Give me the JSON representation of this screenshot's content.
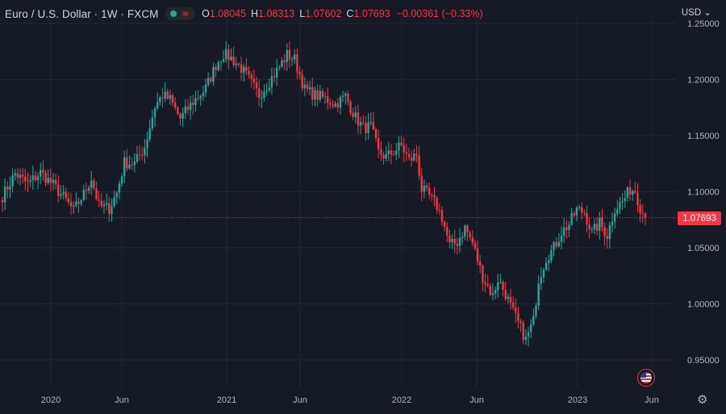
{
  "header": {
    "symbol": "Euro / U.S. Dollar · 1W · FXCM",
    "ohlc": [
      {
        "label": "O",
        "value": "1.08045"
      },
      {
        "label": "H",
        "value": "1.08313"
      },
      {
        "label": "L",
        "value": "1.07602"
      },
      {
        "label": "C",
        "value": "1.07693"
      }
    ],
    "change": "−0.00361 (−0.33%)",
    "currency": "USD"
  },
  "colors": {
    "background": "#161a25",
    "grid": "#242833",
    "up": "#26a69a",
    "down": "#f23645",
    "axis_text": "#b2b5be"
  },
  "icons": [
    "market-status-dot-icon",
    "wave-icon",
    "chevron-down-icon",
    "us-flag-icon",
    "gear-icon"
  ],
  "chart_data": {
    "type": "candlestick",
    "timeframe": "1W",
    "y_range": [
      0.935,
      1.26
    ],
    "y_ticks": [
      "1.25000",
      "1.20000",
      "1.15000",
      "1.10000",
      "1.05000",
      "1.00000",
      "0.95000"
    ],
    "x_ticks": [
      "2020",
      "Jun",
      "2021",
      "Jun",
      "2022",
      "Jun",
      "2023",
      "Jun"
    ],
    "last_price": "1.07693",
    "grid": true,
    "anchor_closes": [
      [
        0,
        1.096
      ],
      [
        5,
        1.116
      ],
      [
        10,
        1.107
      ],
      [
        15,
        1.117
      ],
      [
        20,
        1.106
      ],
      [
        25,
        1.092
      ],
      [
        28,
        1.083
      ],
      [
        32,
        1.098
      ],
      [
        35,
        1.112
      ],
      [
        38,
        1.087
      ],
      [
        42,
        1.085
      ],
      [
        45,
        1.099
      ],
      [
        48,
        1.126
      ],
      [
        52,
        1.125
      ],
      [
        56,
        1.14
      ],
      [
        60,
        1.176
      ],
      [
        63,
        1.186
      ],
      [
        66,
        1.182
      ],
      [
        70,
        1.165
      ],
      [
        75,
        1.18
      ],
      [
        80,
        1.192
      ],
      [
        84,
        1.213
      ],
      [
        87,
        1.223
      ],
      [
        90,
        1.219
      ],
      [
        94,
        1.21
      ],
      [
        97,
        1.2
      ],
      [
        101,
        1.186
      ],
      [
        104,
        1.195
      ],
      [
        108,
        1.208
      ],
      [
        112,
        1.222
      ],
      [
        115,
        1.218
      ],
      [
        119,
        1.191
      ],
      [
        123,
        1.186
      ],
      [
        127,
        1.183
      ],
      [
        131,
        1.178
      ],
      [
        135,
        1.185
      ],
      [
        139,
        1.166
      ],
      [
        142,
        1.157
      ],
      [
        145,
        1.158
      ],
      [
        148,
        1.135
      ],
      [
        151,
        1.131
      ],
      [
        154,
        1.136
      ],
      [
        157,
        1.141
      ],
      [
        160,
        1.128
      ],
      [
        163,
        1.133
      ],
      [
        165,
        1.102
      ],
      [
        168,
        1.096
      ],
      [
        171,
        1.087
      ],
      [
        173,
        1.077
      ],
      [
        176,
        1.052
      ],
      [
        179,
        1.055
      ],
      [
        182,
        1.068
      ],
      [
        185,
        1.054
      ],
      [
        189,
        1.024
      ],
      [
        193,
        1.007
      ],
      [
        195,
        1.022
      ],
      [
        198,
        1.009
      ],
      [
        201,
        0.992
      ],
      [
        204,
        0.978
      ],
      [
        206,
        0.968
      ],
      [
        209,
        0.985
      ],
      [
        211,
        1.022
      ],
      [
        214,
        1.041
      ],
      [
        217,
        1.05
      ],
      [
        220,
        1.064
      ],
      [
        223,
        1.071
      ],
      [
        226,
        1.084
      ],
      [
        229,
        1.082
      ],
      [
        232,
        1.063
      ],
      [
        235,
        1.072
      ],
      [
        238,
        1.061
      ],
      [
        241,
        1.085
      ],
      [
        244,
        1.091
      ],
      [
        247,
        1.102
      ],
      [
        249,
        1.101
      ],
      [
        251,
        1.086
      ],
      [
        253,
        1.077
      ]
    ]
  }
}
